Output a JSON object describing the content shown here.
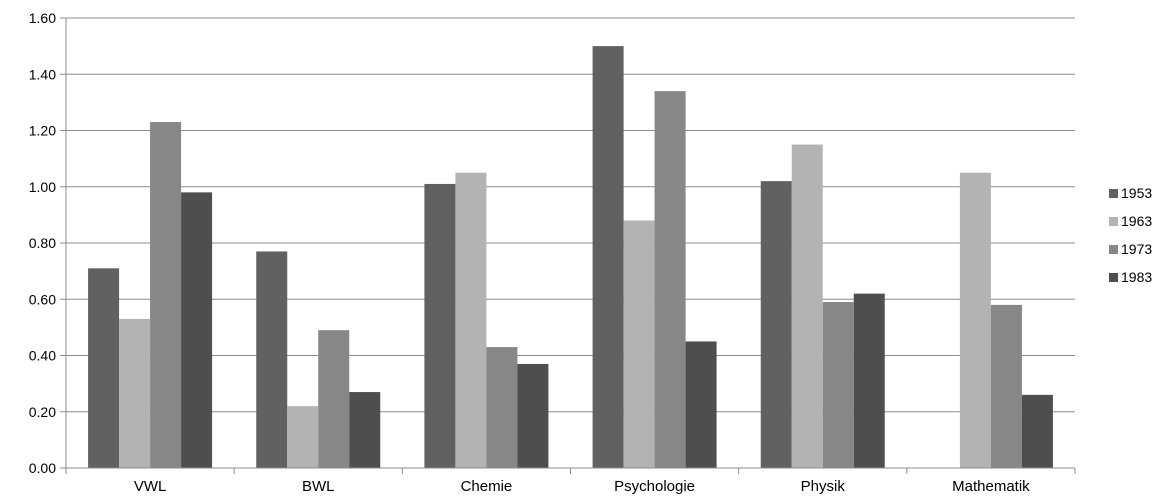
{
  "chart_data": {
    "type": "bar",
    "title": "",
    "xlabel": "",
    "ylabel": "",
    "ylim": [
      0,
      1.6
    ],
    "yticks": [
      "0.00",
      "0.20",
      "0.40",
      "0.60",
      "0.80",
      "1.00",
      "1.20",
      "1.40",
      "1.60"
    ],
    "grid": true,
    "legend_position": "right",
    "categories": [
      "VWL",
      "BWL",
      "Chemie",
      "Psychologie",
      "Physik",
      "Mathematik"
    ],
    "series": [
      {
        "name": "1953",
        "color": "#616161",
        "values": [
          0.71,
          0.77,
          1.01,
          1.5,
          1.02,
          null
        ]
      },
      {
        "name": "1963",
        "color": "#b3b3b3",
        "values": [
          0.53,
          0.22,
          1.05,
          0.88,
          1.15,
          1.05
        ]
      },
      {
        "name": "1973",
        "color": "#878787",
        "values": [
          1.23,
          0.49,
          0.43,
          1.34,
          0.59,
          0.58
        ]
      },
      {
        "name": "1983",
        "color": "#4e4e4e",
        "values": [
          0.98,
          0.27,
          0.37,
          0.45,
          0.62,
          0.26
        ]
      }
    ]
  }
}
